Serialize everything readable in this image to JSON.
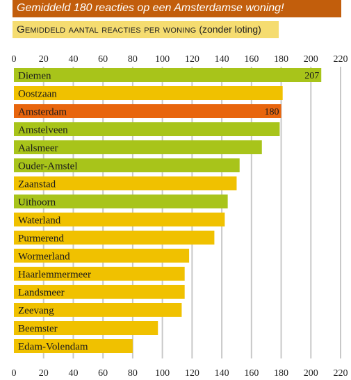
{
  "title": "Gemiddeld 180 reacties op een Amsterdamse woning!",
  "subtitle": {
    "main": "Gemiddeld aantal reacties per woning",
    "note": "(zonder loting)"
  },
  "colors": {
    "title_bg": "#c25e0c",
    "subtitle_bg": "#f5dc70",
    "green": "#a8c41a",
    "yellow": "#f0c100",
    "orange": "#e8650d",
    "grid": "#c8c8c8"
  },
  "chart_data": {
    "type": "bar",
    "orientation": "horizontal",
    "title": "Gemiddeld 180 reacties op een Amsterdamse woning!",
    "subtitle": "Gemiddeld aantal reacties per woning (zonder loting)",
    "xlim": [
      0,
      220
    ],
    "ticks": [
      0,
      20,
      40,
      60,
      80,
      100,
      120,
      140,
      160,
      180,
      200,
      220
    ],
    "grid": true,
    "categories": [
      "Diemen",
      "Oostzaan",
      "Amsterdam",
      "Amstelveen",
      "Aalsmeer",
      "Ouder-Amstel",
      "Zaanstad",
      "Uithoorn",
      "Waterland",
      "Purmerend",
      "Wormerland",
      "Haarlemmermeer",
      "Landsmeer",
      "Zeevang",
      "Beemster",
      "Edam-Volendam"
    ],
    "values": [
      207,
      181,
      180,
      179,
      167,
      152,
      150,
      144,
      142,
      135,
      118,
      115,
      115,
      113,
      97,
      80
    ],
    "bar_colors": [
      "green",
      "yellow",
      "orange",
      "green",
      "green",
      "green",
      "yellow",
      "green",
      "yellow",
      "yellow",
      "yellow",
      "yellow",
      "yellow",
      "yellow",
      "yellow",
      "yellow"
    ],
    "data_labels": {
      "Diemen": "207",
      "Amsterdam": "180"
    }
  }
}
